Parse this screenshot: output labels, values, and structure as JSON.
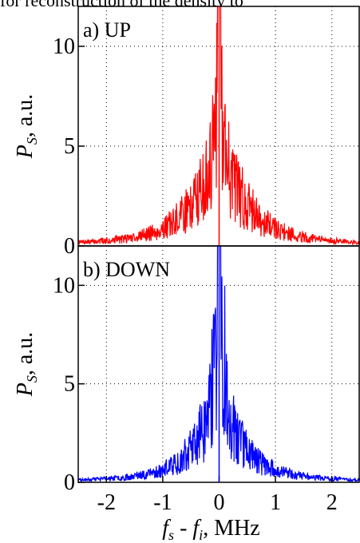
{
  "header_fragment": "for reconstruction of the density to",
  "chart_data": [
    {
      "type": "line",
      "panel_label": "a) UP",
      "series": [
        {
          "name": "",
          "color": "#ff0000"
        }
      ],
      "x": {
        "min": -2.5,
        "max": 2.5
      },
      "y": {
        "min": 0,
        "max": 12,
        "ticks": [
          0,
          5,
          10
        ],
        "tick_labels": [
          "0",
          "5",
          "10"
        ]
      },
      "ylabel_main": "P",
      "ylabel_sub": "S",
      "ylabel_unit": ",  a.u.",
      "grid": true,
      "envelope": {
        "peak": 12,
        "width_mhz": 0.55,
        "noise": "spiky"
      }
    },
    {
      "type": "line",
      "panel_label": "b) DOWN",
      "series": [
        {
          "name": "",
          "color": "#0000ff"
        }
      ],
      "x": {
        "min": -2.5,
        "max": 2.5,
        "ticks": [
          -2,
          -1,
          0,
          1,
          2
        ],
        "tick_labels": [
          "-2",
          "-1",
          "0",
          "1",
          "2"
        ]
      },
      "y": {
        "min": 0,
        "max": 12,
        "ticks": [
          0,
          5,
          10
        ],
        "tick_labels": [
          "0",
          "5",
          "10"
        ]
      },
      "ylabel_main": "P",
      "ylabel_sub": "S",
      "ylabel_unit": ",  a.u.",
      "xlabel_f1": "f",
      "xlabel_sub1": "s",
      "xlabel_mid": " - ",
      "xlabel_f2": "f",
      "xlabel_sub2": "i",
      "xlabel_unit": ",  MHz",
      "grid": true,
      "envelope": {
        "peak": 12,
        "width_mhz": 0.45,
        "noise": "spiky"
      }
    }
  ]
}
